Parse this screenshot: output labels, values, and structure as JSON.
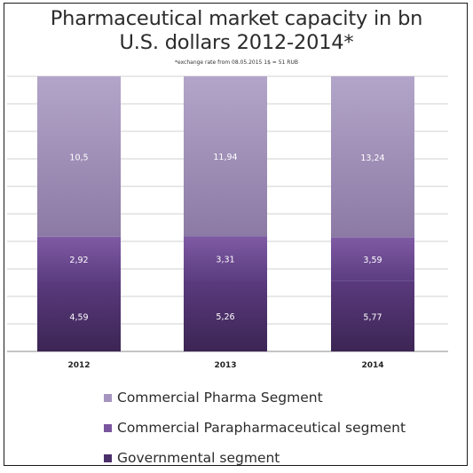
{
  "chart_data": {
    "type": "bar",
    "stacked": true,
    "title": "Pharmaceutical market capacity in bn U.S. dollars 2012-2014*",
    "title_lines": [
      "Pharmaceutical market capacity in bn",
      "U.S. dollars 2012-2014*"
    ],
    "subtitle": "*exchange rate from 08.05.2015 1$ = 51 RUB",
    "categories": [
      "2012",
      "2013",
      "2014"
    ],
    "series": [
      {
        "name": "Governmental segment",
        "values": [
          4.59,
          5.26,
          5.77
        ],
        "labels": [
          "4,59",
          "5,26",
          "5,77"
        ],
        "color": "#4b2f6a"
      },
      {
        "name": "Commercial Parapharmaceutical segment",
        "values": [
          2.92,
          3.31,
          3.59
        ],
        "labels": [
          "2,92",
          "3,31",
          "3,59"
        ],
        "color": "#7a559f"
      },
      {
        "name": "Commercial Pharma Segment",
        "values": [
          10.5,
          11.94,
          13.24
        ],
        "labels": [
          "10,5",
          "11,94",
          "13,24"
        ],
        "color": "#a594bf"
      }
    ],
    "legend_order": [
      "Commercial Pharma Segment",
      "Commercial Parapharmaceutical segment",
      "Governmental segment"
    ],
    "legend_position": "bottom",
    "grid": true
  }
}
